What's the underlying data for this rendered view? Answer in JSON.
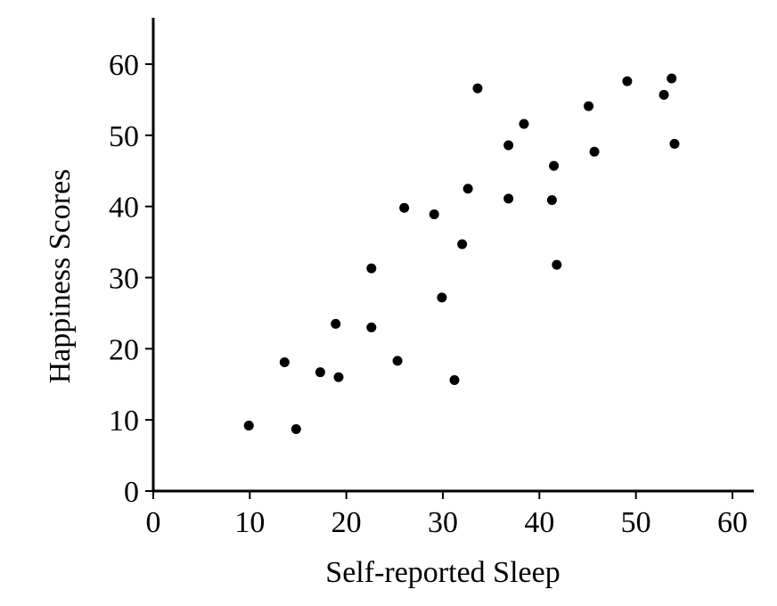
{
  "chart_data": {
    "type": "scatter",
    "title": "",
    "xlabel": "Self-reported Sleep",
    "ylabel": "Happiness Scores",
    "xlim": [
      0,
      62
    ],
    "ylim": [
      0,
      66
    ],
    "xticks": [
      0,
      10,
      20,
      30,
      40,
      50,
      60
    ],
    "yticks": [
      0,
      10,
      20,
      30,
      40,
      50,
      60
    ],
    "xtick_labels": [
      "0",
      "10",
      "20",
      "30",
      "40",
      "50",
      "60"
    ],
    "ytick_labels": [
      "0",
      "10",
      "20",
      "30",
      "40",
      "50",
      "60"
    ],
    "grid": false,
    "marker_color": "#000000",
    "points": [
      {
        "x": 9.9,
        "y": 9.2
      },
      {
        "x": 13.6,
        "y": 18.1
      },
      {
        "x": 14.8,
        "y": 8.7
      },
      {
        "x": 17.3,
        "y": 16.7
      },
      {
        "x": 18.9,
        "y": 23.5
      },
      {
        "x": 19.2,
        "y": 16.0
      },
      {
        "x": 22.6,
        "y": 31.3
      },
      {
        "x": 22.6,
        "y": 23.0
      },
      {
        "x": 25.3,
        "y": 18.3
      },
      {
        "x": 26.0,
        "y": 39.8
      },
      {
        "x": 29.1,
        "y": 38.9
      },
      {
        "x": 29.9,
        "y": 27.2
      },
      {
        "x": 31.2,
        "y": 15.6
      },
      {
        "x": 32.0,
        "y": 34.7
      },
      {
        "x": 32.6,
        "y": 42.5
      },
      {
        "x": 33.6,
        "y": 56.6
      },
      {
        "x": 36.8,
        "y": 48.6
      },
      {
        "x": 36.8,
        "y": 41.1
      },
      {
        "x": 38.4,
        "y": 51.6
      },
      {
        "x": 41.3,
        "y": 40.9
      },
      {
        "x": 41.5,
        "y": 45.7
      },
      {
        "x": 41.8,
        "y": 31.8
      },
      {
        "x": 45.1,
        "y": 54.1
      },
      {
        "x": 45.7,
        "y": 47.7
      },
      {
        "x": 49.1,
        "y": 57.6
      },
      {
        "x": 52.9,
        "y": 55.7
      },
      {
        "x": 53.7,
        "y": 58.0
      },
      {
        "x": 54.0,
        "y": 48.8
      }
    ]
  }
}
